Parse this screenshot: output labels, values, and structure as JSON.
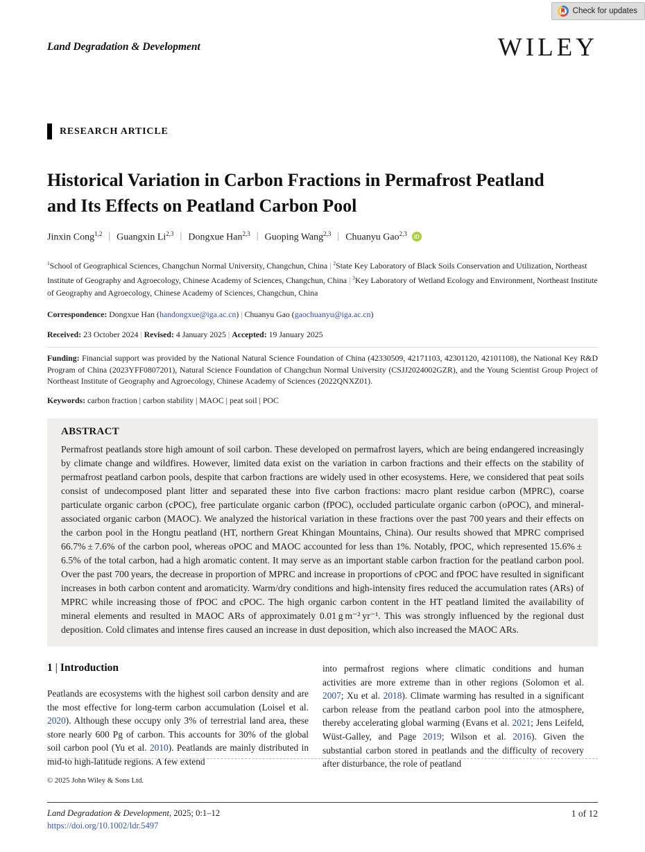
{
  "colors": {
    "link_blue": "#2d4a9e",
    "doi_blue": "#3557a7",
    "abstract_bg": "#efeeec",
    "orcid_green": "#a6ce39",
    "crossmark_red": "#e8493a",
    "crossmark_yellow": "#f3c83d",
    "crossmark_blue": "#3d83c4"
  },
  "header": {
    "check_for_updates": "Check for updates",
    "journal_name": "Land Degradation & Development",
    "publisher_logo": "WILEY"
  },
  "article": {
    "type_label": "RESEARCH ARTICLE",
    "title": "Historical Variation in Carbon Fractions in Permafrost Peatland and Its Effects on Peatland Carbon Pool",
    "authors": [
      {
        "name": "Jinxin Cong",
        "sup": "1,2"
      },
      {
        "name": "Guangxin Li",
        "sup": "2,3"
      },
      {
        "name": "Dongxue Han",
        "sup": "2,3"
      },
      {
        "name": "Guoping Wang",
        "sup": "2,3"
      },
      {
        "name": "Chuanyu Gao",
        "sup": "2,3"
      }
    ],
    "orcid_label": "iD",
    "affiliations_rich": [
      {
        "t": "1",
        "c": "sup"
      },
      {
        "t": "School of Geographical Sciences, Changchun Normal University, Changchun, China"
      },
      {
        "t": "  |  ",
        "c": "sep"
      },
      {
        "t": "2",
        "c": "sup"
      },
      {
        "t": "State Key Laboratory of Black Soils Conservation and Utilization, Northeast Institute of Geography and Agroecology, Chinese Academy of Sciences, Changchun, China"
      },
      {
        "t": "  |  ",
        "c": "sep"
      },
      {
        "t": "3",
        "c": "sup"
      },
      {
        "t": "Key Laboratory of Wetland Ecology and Environment, Northeast Institute of Geography and Agroecology, Chinese Academy of Sciences, Changchun, China"
      }
    ],
    "correspondence_rich": [
      {
        "t": "Correspondence: ",
        "c": "b"
      },
      {
        "t": "Dongxue Han ("
      },
      {
        "t": "handongxue@iga.ac.cn",
        "c": "lk",
        "n": "correspondence-email-link",
        "ia": true
      },
      {
        "t": ")"
      },
      {
        "t": "  |  ",
        "c": "sep"
      },
      {
        "t": "Chuanyu Gao ("
      },
      {
        "t": "gaochuanyu@iga.ac.cn",
        "c": "lk",
        "n": "correspondence-email-link",
        "ia": true
      },
      {
        "t": ")"
      }
    ],
    "dates_rich": [
      {
        "t": "Received: ",
        "c": "b"
      },
      {
        "t": "23 October 2024"
      },
      {
        "t": "  |  ",
        "c": "sep"
      },
      {
        "t": "Revised: ",
        "c": "b"
      },
      {
        "t": "4 January 2025"
      },
      {
        "t": "  |  ",
        "c": "sep"
      },
      {
        "t": "Accepted: ",
        "c": "b"
      },
      {
        "t": "19 January 2025"
      }
    ],
    "funding_rich": [
      {
        "t": "Funding: ",
        "c": "b"
      },
      {
        "t": "Financial support was provided by the National Natural Science Foundation of China (42330509, 42171103, 42301120, 42101108), the National Key R&D Program of China (2023YFF0807201), Natural Science Foundation of Changchun Normal University (CSJJ2024002GZR), and the Young Scientist Group Project of Northeast Institute of Geography and Agroecology, Chinese Academy of Sciences (2022QNXZ01)."
      }
    ],
    "keywords_rich": [
      {
        "t": "Keywords: ",
        "c": "b"
      },
      {
        "t": "carbon fraction | carbon stability | MAOC | peat soil | POC"
      }
    ]
  },
  "abstract": {
    "heading": "ABSTRACT",
    "text": "Permafrost peatlands store high amount of soil carbon. These developed on permafrost layers, which are being endangered increasingly by climate change and wildfires. However, limited data exist on the variation in carbon fractions and their effects on the stability of permafrost peatland carbon pools, despite that carbon fractions are widely used in other ecosystems. Here, we considered that peat soils consist of undecomposed plant litter and separated these into five carbon fractions: macro plant residue carbon (MPRC), coarse particulate organic carbon (cPOC), free particulate organic carbon (fPOC), occluded particulate organic carbon (oPOC), and mineral-associated organic carbon (MAOC). We analyzed the historical variation in these fractions over the past 700 years and their effects on the carbon pool in the Hongtu peatland (HT, northern Great Khingan Mountains, China). Our results showed that MPRC comprised 66.7% ± 7.6% of the carbon pool, whereas oPOC and MAOC accounted for less than 1%. Notably, fPOC, which represented 15.6% ± 6.5% of the total carbon, had a high aromatic content. It may serve as an important stable carbon fraction for the peatland carbon pool. Over the past 700 years, the decrease in proportion of MPRC and increase in proportions of cPOC and fPOC have resulted in significant increases in both carbon content and aromaticity. Warm/dry conditions and high-intensity fires reduced the accumulation rates (ARs) of MPRC while increasing those of fPOC and cPOC. The high organic carbon content in the HT peatland limited the availability of mineral elements and resulted in MAOC ARs of approximately 0.01 g m⁻² yr⁻¹. This was strongly influenced by the regional dust deposition. Cold climates and intense fires caused an increase in dust deposition, which also increased the MAOC ARs."
  },
  "intro": {
    "heading_rich": [
      {
        "t": "1"
      },
      {
        "t": "   |   ",
        "c": "sep"
      },
      {
        "t": "Introduction"
      }
    ],
    "left_rich": [
      {
        "t": "Peatlands are ecosystems with the highest soil carbon density and are the most effective for long-term carbon accumulation (Loisel et al. "
      },
      {
        "t": "2020",
        "c": "lk",
        "n": "citation-link",
        "ia": true
      },
      {
        "t": "). Although these occupy only 3% of terrestrial land area, these store nearly 600 Pg of carbon. This accounts for 30% of the global soil carbon pool (Yu et al. "
      },
      {
        "t": "2010",
        "c": "lk",
        "n": "citation-link",
        "ia": true
      },
      {
        "t": "). Peatlands are mainly distributed in mid-to high-latitude regions. A few extend"
      }
    ],
    "right_rich": [
      {
        "t": "into permafrost regions where climatic conditions and human activities are more extreme than in other regions (Solomon et al. "
      },
      {
        "t": "2007",
        "c": "lk",
        "n": "citation-link",
        "ia": true
      },
      {
        "t": "; Xu et al. "
      },
      {
        "t": "2018",
        "c": "lk",
        "n": "citation-link",
        "ia": true
      },
      {
        "t": "). Climate warming has resulted in a significant carbon release from the peatland carbon pool into the atmosphere, thereby accelerating global warming (Evans et al. "
      },
      {
        "t": "2021",
        "c": "lk",
        "n": "citation-link",
        "ia": true
      },
      {
        "t": "; Jens Leifeld, Wüst-Galley, and Page "
      },
      {
        "t": "2019",
        "c": "lk",
        "n": "citation-link",
        "ia": true
      },
      {
        "t": "; Wilson et al. "
      },
      {
        "t": "2016",
        "c": "lk",
        "n": "citation-link",
        "ia": true
      },
      {
        "t": "). Given the substantial carbon stored in peatlands and the difficulty of recovery after disturbance, the role of peatland"
      }
    ]
  },
  "footer": {
    "copyright": "© 2025 John Wiley & Sons Ltd.",
    "citation_rich": [
      {
        "t": "Land Degradation & Development",
        "c": "i"
      },
      {
        "t": ", 2025; 0:1–12"
      }
    ],
    "doi": "https://doi.org/10.1002/ldr.5497",
    "page_label": "1 of 12"
  }
}
